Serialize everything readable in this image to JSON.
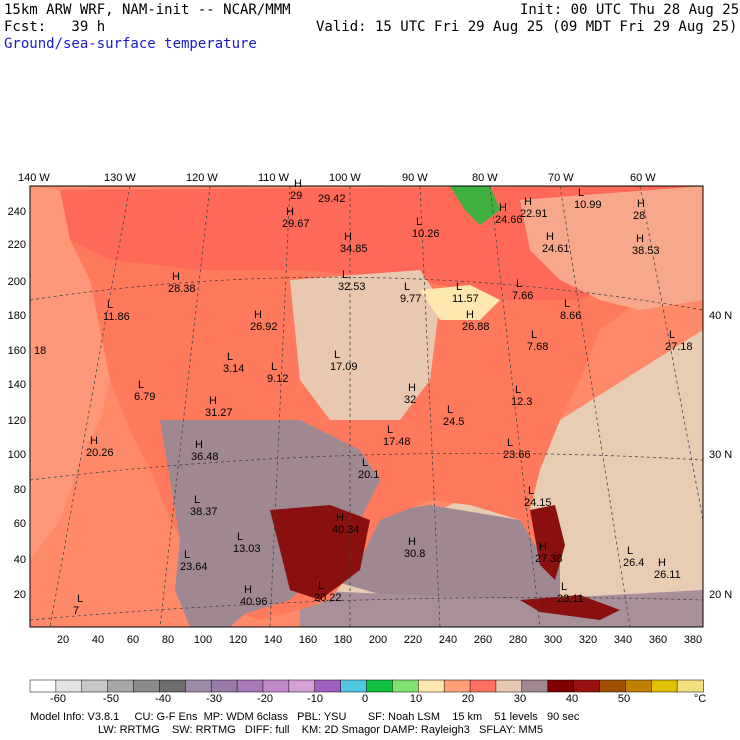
{
  "header": {
    "model": "15km ARW WRF, NAM-init -- NCAR/MMM",
    "init": "Init: 00 UTC Thu 28 Aug 25",
    "fcst": "Fcst:   39 h",
    "valid": "Valid: 15 UTC Fri 29 Aug 25 (09 MDT Fri 29 Aug 25)",
    "field": "Ground/sea-surface temperature"
  },
  "axes": {
    "lon_labels": [
      "140 W",
      "130 W",
      "120 W",
      "110 W",
      "100 W",
      "90 W",
      "80 W",
      "70 W",
      "60 W"
    ],
    "lat_labels": [
      "40 N",
      "30 N",
      "20 N"
    ],
    "y_ticks": [
      "240",
      "220",
      "200",
      "180",
      "160",
      "140",
      "120",
      "100",
      "80",
      "60",
      "40",
      "20"
    ],
    "x_ticks": [
      "20",
      "40",
      "60",
      "80",
      "100",
      "120",
      "140",
      "160",
      "180",
      "200",
      "220",
      "240",
      "260",
      "280",
      "300",
      "320",
      "340",
      "360",
      "380"
    ]
  },
  "extrema": [
    {
      "t": "H",
      "v": "29"
    },
    {
      "t": "",
      "v": "29.42"
    },
    {
      "t": "H",
      "v": "29.67"
    },
    {
      "t": "H",
      "v": "34.85"
    },
    {
      "t": "L",
      "v": "10.26"
    },
    {
      "t": "H",
      "v": "24.66"
    },
    {
      "t": "H",
      "v": "22.91"
    },
    {
      "t": "L",
      "v": "10.99"
    },
    {
      "t": "H",
      "v": "28"
    },
    {
      "t": "H",
      "v": "24.61"
    },
    {
      "t": "H",
      "v": "38.53"
    },
    {
      "t": "H",
      "v": "28.38"
    },
    {
      "t": "L",
      "v": "32.53"
    },
    {
      "t": "L",
      "v": "9.77"
    },
    {
      "t": "L",
      "v": "11.57"
    },
    {
      "t": "L",
      "v": "7.66"
    },
    {
      "t": "L",
      "v": "8.66"
    },
    {
      "t": "L",
      "v": "11.86"
    },
    {
      "t": "H",
      "v": "26.92"
    },
    {
      "t": "H",
      "v": "26.88"
    },
    {
      "t": "L",
      "v": "7.68"
    },
    {
      "t": "L",
      "v": "27.18"
    },
    {
      "t": "L",
      "v": "3.14"
    },
    {
      "t": "L",
      "v": "9.12"
    },
    {
      "t": "L",
      "v": "17.09"
    },
    {
      "t": "L",
      "v": "6.79"
    },
    {
      "t": "H",
      "v": "31.27"
    },
    {
      "t": "H",
      "v": "32"
    },
    {
      "t": "L",
      "v": "24.5"
    },
    {
      "t": "L",
      "v": "12.3"
    },
    {
      "t": "H",
      "v": "20.26"
    },
    {
      "t": "H",
      "v": "36.48"
    },
    {
      "t": "L",
      "v": "17.48"
    },
    {
      "t": "L",
      "v": "23.66"
    },
    {
      "t": "L",
      "v": "20.1"
    },
    {
      "t": "L",
      "v": "24.15"
    },
    {
      "t": "L",
      "v": "38.37"
    },
    {
      "t": "H",
      "v": "40.34"
    },
    {
      "t": "H",
      "v": "30.8"
    },
    {
      "t": "L",
      "v": "13.03"
    },
    {
      "t": "H",
      "v": "27.38"
    },
    {
      "t": "L",
      "v": "26.4"
    },
    {
      "t": "L",
      "v": "23.64"
    },
    {
      "t": "H",
      "v": "26.11"
    },
    {
      "t": "L",
      "v": "7"
    },
    {
      "t": "H",
      "v": "40.96"
    },
    {
      "t": "L",
      "v": "20.22"
    },
    {
      "t": "L",
      "v": "23.11"
    },
    {
      "t": "",
      "v": "18"
    }
  ],
  "colorbar": {
    "labels": [
      "-60",
      "-50",
      "-40",
      "-30",
      "-20",
      "-10",
      "0",
      "10",
      "20",
      "30",
      "40",
      "50"
    ],
    "unit": "°C",
    "colors": [
      "#ffffff",
      "#e4e4e4",
      "#c8c8c8",
      "#a8a8a8",
      "#8c8c8c",
      "#6e6e6e",
      "#a08ca8",
      "#9a7aa8",
      "#a878b8",
      "#c088c8",
      "#d8a0d8",
      "#a060c0",
      "#50c8e0",
      "#10c040",
      "#80e070",
      "#ffe8b0",
      "#ffa078",
      "#ff7060",
      "#e8c8b0",
      "#a08890",
      "#800000",
      "#9a1010",
      "#a05000",
      "#c08000",
      "#e0c000",
      "#f0e080"
    ]
  },
  "footer": {
    "line1": "Model Info: V3.8.1     CU: G-F Ens  MP: WDM 6class   PBL: YSU       SF: Noah LSM    15 km    51 levels   90 sec",
    "line2": "LW: RRTMG    SW: RRTMG   DIFF: full    KM: 2D Smagor DAMP: Rayleigh3   SFLAY: MM5"
  }
}
